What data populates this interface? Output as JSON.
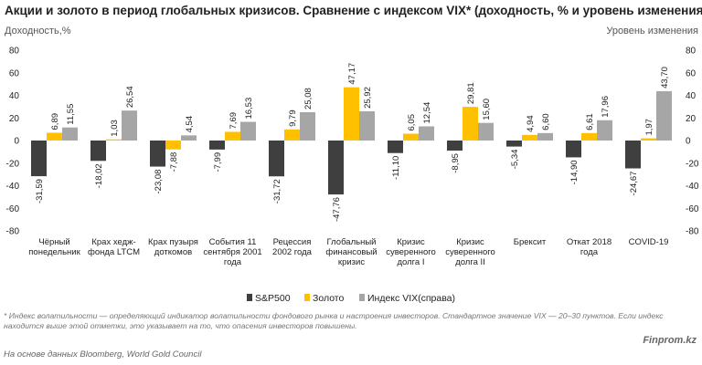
{
  "title": "Акции и золото в период глобальных кризисов. Сравнение с индексом VIX* (доходность, % и уровень изменения)",
  "footnote": "* Индекс волатильности — определяющий индикатор волатильности фондового рынка и настроения инвесторов. Стандартное значение VIX — 20–30 пунктов. Если индекс находится выше этой отметки, это указывает на то, что опасения инвесторов повышены.",
  "source": "На основе данных Bloomberg, World Gold Council",
  "brand": "Finprom.kz",
  "chart_data": {
    "type": "bar",
    "ylabel": "Доходность,%",
    "y2label": "Уровень изменения",
    "ylim": [
      -80,
      80
    ],
    "yticks": [
      "80",
      "60",
      "40",
      "20",
      "0",
      "-20",
      "-40",
      "-60",
      "-80"
    ],
    "categories": [
      [
        "Чёрный",
        "понедельник"
      ],
      [
        "Крах хедж-",
        "фонда LTCM"
      ],
      [
        "Крах пузыря",
        "доткомов"
      ],
      [
        "События 11",
        "сентября 2001",
        "года"
      ],
      [
        "Рецессия",
        "2002 года"
      ],
      [
        "Глобальный",
        "финансовый",
        "кризис"
      ],
      [
        "Кризис",
        "суверенного",
        "долга I"
      ],
      [
        "Кризис",
        "суверенного",
        "долга II"
      ],
      [
        "Брексит"
      ],
      [
        "Откат 2018",
        "года"
      ],
      [
        "COVID-19"
      ]
    ],
    "series": [
      {
        "name": "S&P500",
        "color": "#3f3f3f",
        "values": [
          -31.59,
          -18.02,
          -23.08,
          -7.99,
          -31.72,
          -47.76,
          -11.1,
          -8.95,
          -5.34,
          -14.9,
          -24.67
        ],
        "labels": [
          "-31,59",
          "-18,02",
          "-23,08",
          "-7,99",
          "-31,72",
          "-47,76",
          "-11,10",
          "-8,95",
          "-5,34",
          "-14,90",
          "-24,67"
        ]
      },
      {
        "name": "Золото",
        "color": "#ffc000",
        "values": [
          6.89,
          1.03,
          -7.88,
          7.69,
          9.79,
          47.17,
          6.05,
          29.81,
          4.94,
          6.61,
          1.97
        ],
        "labels": [
          "6,89",
          "1,03",
          "-7,88",
          "7,69",
          "9,79",
          "47,17",
          "6,05",
          "29,81",
          "4,94",
          "6,61",
          "1,97"
        ]
      },
      {
        "name": "Индекс VIX(справа)",
        "color": "#a6a6a6",
        "values": [
          11.55,
          26.54,
          4.54,
          16.53,
          25.08,
          25.92,
          12.54,
          15.6,
          6.6,
          17.96,
          43.7
        ],
        "labels": [
          "11,55",
          "26,54",
          "4,54",
          "16,53",
          "25,08",
          "25,92",
          "12,54",
          "15,60",
          "6,60",
          "17,96",
          "43,70"
        ]
      }
    ],
    "legend_position": "bottom",
    "grid": false
  }
}
